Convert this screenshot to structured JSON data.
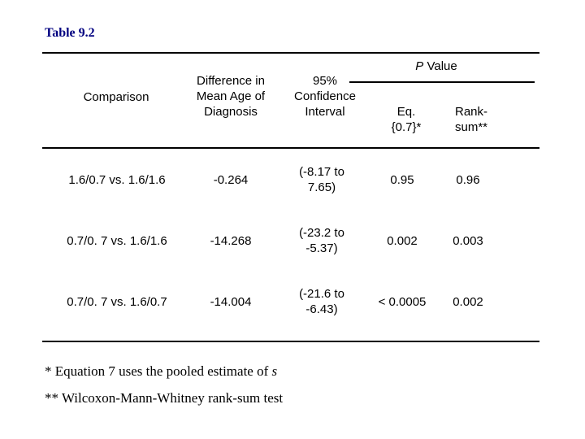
{
  "title": "Table 9.2",
  "header": {
    "comparison": "Comparison",
    "difference": [
      "Difference in",
      "Mean Age of",
      "Diagnosis"
    ],
    "ci": [
      "95%",
      "Confidence",
      "Interval"
    ],
    "p_value_italic": "P",
    "p_value_rest": " Value",
    "eq": [
      "Eq.",
      "{0.7}*"
    ],
    "rank": [
      "Rank-",
      "sum**"
    ]
  },
  "rows": [
    {
      "comparison": "1.6/0.7 vs. 1.6/1.6",
      "difference": "-0.264",
      "ci": [
        "(-8.17 to",
        "7.65)"
      ],
      "eq": "0.95",
      "rank": "0.96"
    },
    {
      "comparison": "0.7/0. 7 vs. 1.6/1.6",
      "difference": "-14.268",
      "ci": [
        "(-23.2 to",
        "-5.37)"
      ],
      "eq": "0.002",
      "rank": "0.003"
    },
    {
      "comparison": "0.7/0. 7 vs. 1.6/0.7",
      "difference": "-14.004",
      "ci": [
        "(-21.6 to",
        "-6.43)"
      ],
      "eq": "< 0.0005",
      "rank": "0.002"
    }
  ],
  "footnotes": {
    "note1_prefix": "*  Equation 7 uses the pooled estimate of ",
    "note1_var": "s",
    "note2": "** Wilcoxon-Mann-Whitney rank-sum test"
  }
}
